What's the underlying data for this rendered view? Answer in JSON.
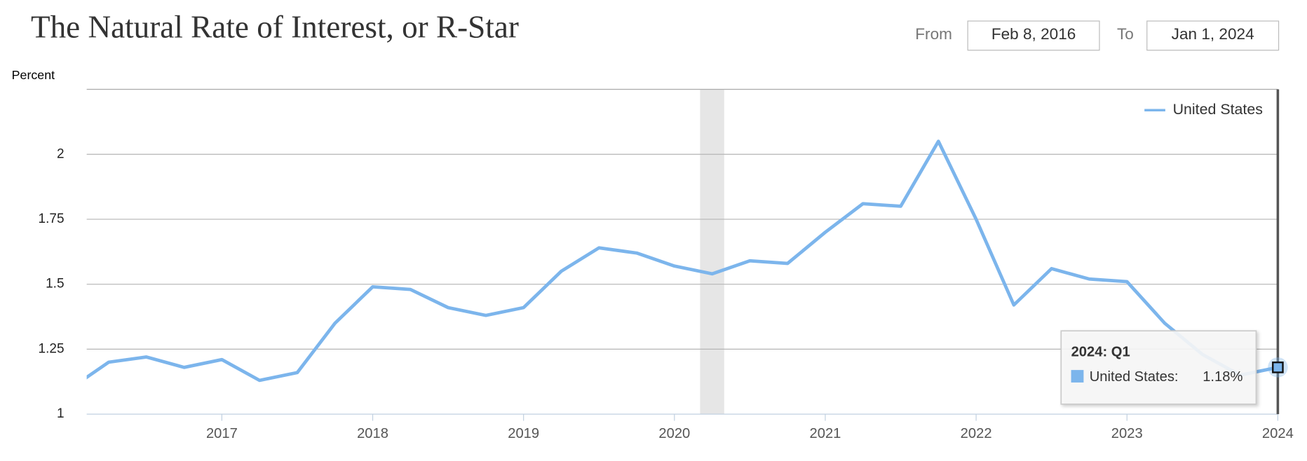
{
  "header": {
    "from_label": "From",
    "from_value": "Feb 8, 2016",
    "to_label": "To",
    "to_value": "Jan 1, 2024"
  },
  "chart_data": {
    "type": "line",
    "title": "The Natural Rate of Interest, or R-Star",
    "y_label": "Percent",
    "x": [
      "2016: Q1",
      "2016: Q2",
      "2016: Q3",
      "2016: Q4",
      "2017: Q1",
      "2017: Q2",
      "2017: Q3",
      "2017: Q4",
      "2018: Q1",
      "2018: Q2",
      "2018: Q3",
      "2018: Q4",
      "2019: Q1",
      "2019: Q2",
      "2019: Q3",
      "2019: Q4",
      "2020: Q1",
      "2020: Q2",
      "2020: Q3",
      "2020: Q4",
      "2021: Q1",
      "2021: Q2",
      "2021: Q3",
      "2021: Q4",
      "2022: Q1",
      "2022: Q2",
      "2022: Q3",
      "2022: Q4",
      "2023: Q1",
      "2023: Q2",
      "2023: Q3",
      "2023: Q4",
      "2024: Q1"
    ],
    "series": [
      {
        "name": "United States",
        "color": "#7cb5ec",
        "values": [
          1.1,
          1.2,
          1.22,
          1.18,
          1.21,
          1.13,
          1.16,
          1.35,
          1.49,
          1.48,
          1.41,
          1.38,
          1.41,
          1.55,
          1.64,
          1.62,
          1.57,
          1.54,
          1.59,
          1.58,
          1.7,
          1.81,
          1.8,
          2.05,
          1.75,
          1.42,
          1.56,
          1.52,
          1.51,
          1.35,
          1.23,
          1.15,
          1.18
        ]
      }
    ],
    "xlim": [
      2016.104,
      2024
    ],
    "xticks": [
      2017,
      2018,
      2019,
      2020,
      2021,
      2022,
      2023,
      2024
    ],
    "ylim": [
      1,
      2.25
    ],
    "yticks": [
      1,
      1.25,
      1.5,
      1.75,
      2
    ],
    "grid": true,
    "legend": "top-right",
    "recession": [
      2020.17,
      2020.33
    ],
    "tooltip": {
      "label": "United States:",
      "value_label": "1.18%"
    }
  }
}
